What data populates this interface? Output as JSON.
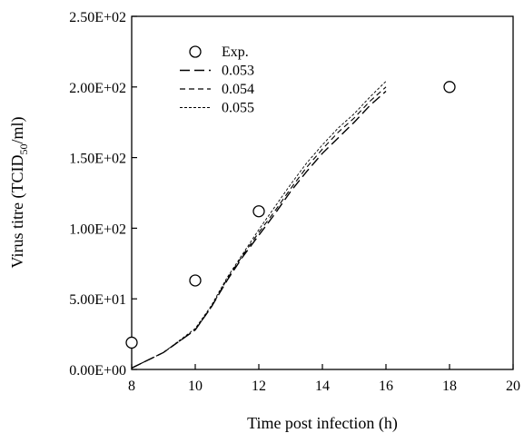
{
  "chart_data": {
    "type": "line",
    "title": "",
    "xlabel": "Time post infection (h)",
    "ylabel": {
      "prefix": "Virus titre (TCID",
      "sub": "50",
      "suffix": "/ml)"
    },
    "xlim": [
      8,
      20
    ],
    "ylim": [
      0,
      250
    ],
    "xticks": [
      8,
      10,
      12,
      14,
      16,
      18,
      20
    ],
    "yticks": [
      0,
      50,
      100,
      150,
      200,
      250
    ],
    "xtick_labels": [
      "8",
      "10",
      "12",
      "14",
      "16",
      "18",
      "20"
    ],
    "ytick_labels": [
      "0.00E+00",
      "5.00E+01",
      "1.00E+02",
      "1.50E+02",
      "2.00E+02",
      "2.50E+02"
    ],
    "grid": false,
    "legend_position": "top-left",
    "series": [
      {
        "name": "Exp.",
        "kind": "scatter",
        "marker": "open-circle",
        "x": [
          8,
          10,
          12,
          18
        ],
        "y": [
          19,
          63,
          112,
          200
        ]
      },
      {
        "name": "0.053",
        "kind": "line",
        "dash": "long",
        "x": [
          8,
          9,
          10,
          10.5,
          11,
          11.5,
          12,
          12.5,
          13,
          13.5,
          14,
          14.5,
          15,
          15.5,
          16
        ],
        "y": [
          1,
          12,
          28,
          44,
          63,
          80,
          95,
          110,
          126,
          140,
          153,
          164,
          175,
          187,
          197
        ]
      },
      {
        "name": "0.054",
        "kind": "line",
        "dash": "medium",
        "x": [
          8,
          9,
          10,
          10.5,
          11,
          11.5,
          12,
          12.5,
          13,
          13.5,
          14,
          14.5,
          15,
          15.5,
          16
        ],
        "y": [
          1,
          12,
          28,
          44,
          64,
          81,
          97,
          112,
          128,
          143,
          156,
          168,
          178,
          190,
          200
        ]
      },
      {
        "name": "0.055",
        "kind": "line",
        "dash": "short",
        "x": [
          8,
          9,
          10,
          10.5,
          11,
          11.5,
          12,
          12.5,
          13,
          13.5,
          14,
          14.5,
          15,
          15.5,
          16
        ],
        "y": [
          1,
          12,
          29,
          45,
          65,
          82,
          99,
          115,
          131,
          146,
          159,
          171,
          181,
          193,
          204
        ]
      }
    ]
  }
}
